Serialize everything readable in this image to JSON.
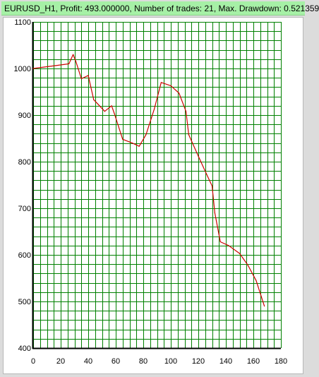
{
  "window": {
    "title": "EURUSD_H1, Profit: 493.000000, Number of trades: 21, Max. Drawdown: 0.521359"
  },
  "colors": {
    "title_bg": "#a6f0a6",
    "grid": "#008000",
    "line": "#cc0000",
    "axis": "#000000"
  },
  "chart_data": {
    "type": "line",
    "title": "",
    "xlabel": "",
    "ylabel": "",
    "xlim": [
      0,
      180
    ],
    "ylim": [
      400,
      1100
    ],
    "grid": true,
    "x_ticks": [
      "0",
      "20",
      "40",
      "60",
      "80",
      "100",
      "120",
      "140",
      "160",
      "180"
    ],
    "y_ticks": [
      "400",
      "500",
      "600",
      "700",
      "800",
      "900",
      "1000",
      "1100"
    ],
    "series": [
      {
        "x": [
          0,
          8,
          16,
          26,
          29,
          31,
          35,
          40,
          44,
          52,
          57,
          59,
          65,
          72,
          77,
          82,
          88,
          93,
          100,
          106,
          111,
          113,
          120,
          126,
          130,
          132,
          136,
          142,
          150,
          156,
          162,
          168
        ],
        "y": [
          1000,
          1003,
          1006,
          1010,
          1030,
          1015,
          978,
          985,
          933,
          908,
          920,
          903,
          848,
          840,
          833,
          858,
          913,
          970,
          963,
          947,
          908,
          858,
          812,
          773,
          748,
          690,
          628,
          620,
          603,
          578,
          545,
          490
        ]
      }
    ]
  }
}
